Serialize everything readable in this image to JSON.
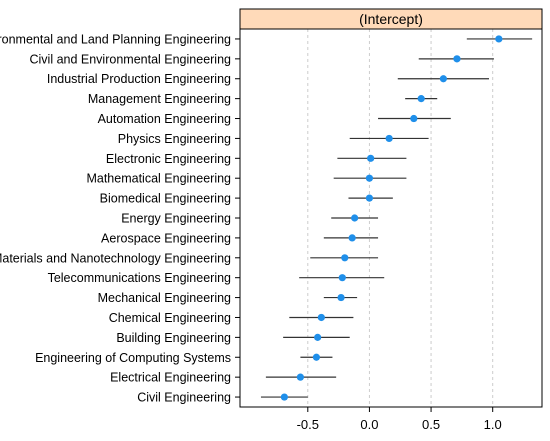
{
  "chart_data": {
    "type": "dotplot-interval",
    "title": "(Intercept)",
    "xlabel": "",
    "ylabel": "",
    "xlim": [
      -1.05,
      1.4
    ],
    "x_ticks": [
      -0.5,
      0.0,
      0.5,
      1.0
    ],
    "x_tick_labels": [
      "-0.5",
      "0.0",
      "0.5",
      "1.0"
    ],
    "grid": "vertical dashed",
    "colors": {
      "point": "#1f8fea",
      "interval": "#333333",
      "strip": "#ffdab9",
      "border": "#000000",
      "grid": "#cccccc"
    },
    "categories": [
      "Environmental and Land Planning Engineering",
      "Civil and Environmental Engineering",
      "Industrial Production Engineering",
      "Management Engineering",
      "Automation Engineering",
      "Physics Engineering",
      "Electronic Engineering",
      "Mathematical Engineering",
      "Biomedical Engineering",
      "Energy Engineering",
      "Aerospace Engineering",
      "Materials and Nanotechnology Engineering",
      "Telecommunications Engineering",
      "Mechanical Engineering",
      "Chemical Engineering",
      "Building Engineering",
      "Engineering of Computing Systems",
      "Electrical Engineering",
      "Civil Engineering"
    ],
    "estimates": [
      1.05,
      0.71,
      0.6,
      0.42,
      0.36,
      0.16,
      0.01,
      0.0,
      0.0,
      -0.12,
      -0.14,
      -0.2,
      -0.22,
      -0.23,
      -0.39,
      -0.42,
      -0.43,
      -0.56,
      -0.69
    ],
    "lower": [
      0.79,
      0.4,
      0.23,
      0.29,
      0.07,
      -0.16,
      -0.26,
      -0.29,
      -0.17,
      -0.31,
      -0.37,
      -0.48,
      -0.57,
      -0.37,
      -0.65,
      -0.7,
      -0.56,
      -0.84,
      -0.88
    ],
    "upper": [
      1.32,
      1.01,
      0.97,
      0.55,
      0.66,
      0.48,
      0.3,
      0.3,
      0.19,
      0.07,
      0.07,
      0.07,
      0.12,
      -0.1,
      -0.13,
      -0.16,
      -0.3,
      -0.27,
      -0.5
    ]
  }
}
